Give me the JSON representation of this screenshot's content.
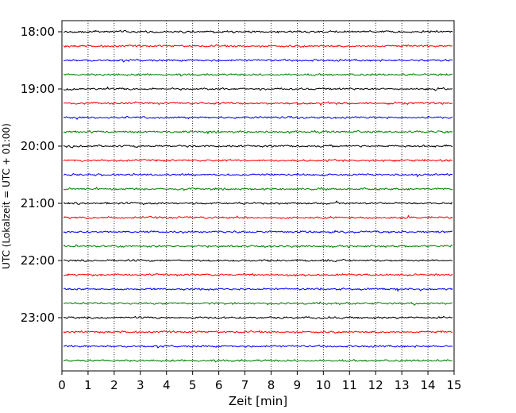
{
  "chart_data": {
    "type": "line",
    "title": "",
    "xlabel": "Zeit  [min]",
    "ylabel": "UTC (Lokalzeit = UTC + 01:00)",
    "xlim": [
      0,
      15
    ],
    "x_ticks": [
      "0",
      "1",
      "2",
      "3",
      "4",
      "5",
      "6",
      "7",
      "8",
      "9",
      "10",
      "11",
      "12",
      "13",
      "14",
      "15"
    ],
    "y_ticks": [
      "18:00",
      "19:00",
      "20:00",
      "21:00",
      "22:00",
      "23:00"
    ],
    "grid": "vertical dotted lines at each minute",
    "trace_interval_minutes": 15,
    "color_cycle": [
      "#000000",
      "#ff0000",
      "#0000ff",
      "#008000"
    ],
    "traces": [
      {
        "start": "18:00",
        "color": "#000000"
      },
      {
        "start": "18:15",
        "color": "#ff0000"
      },
      {
        "start": "18:30",
        "color": "#0000ff"
      },
      {
        "start": "18:45",
        "color": "#008000"
      },
      {
        "start": "19:00",
        "color": "#000000"
      },
      {
        "start": "19:15",
        "color": "#ff0000"
      },
      {
        "start": "19:30",
        "color": "#0000ff"
      },
      {
        "start": "19:45",
        "color": "#008000"
      },
      {
        "start": "20:00",
        "color": "#000000"
      },
      {
        "start": "20:15",
        "color": "#ff0000"
      },
      {
        "start": "20:30",
        "color": "#0000ff"
      },
      {
        "start": "20:45",
        "color": "#008000"
      },
      {
        "start": "21:00",
        "color": "#000000"
      },
      {
        "start": "21:15",
        "color": "#ff0000"
      },
      {
        "start": "21:30",
        "color": "#0000ff"
      },
      {
        "start": "21:45",
        "color": "#008000"
      },
      {
        "start": "22:00",
        "color": "#000000"
      },
      {
        "start": "22:15",
        "color": "#ff0000"
      },
      {
        "start": "22:30",
        "color": "#0000ff"
      },
      {
        "start": "22:45",
        "color": "#008000"
      },
      {
        "start": "23:00",
        "color": "#000000"
      },
      {
        "start": "23:15",
        "color": "#ff0000"
      },
      {
        "start": "23:30",
        "color": "#0000ff"
      },
      {
        "start": "23:45",
        "color": "#008000"
      }
    ]
  }
}
